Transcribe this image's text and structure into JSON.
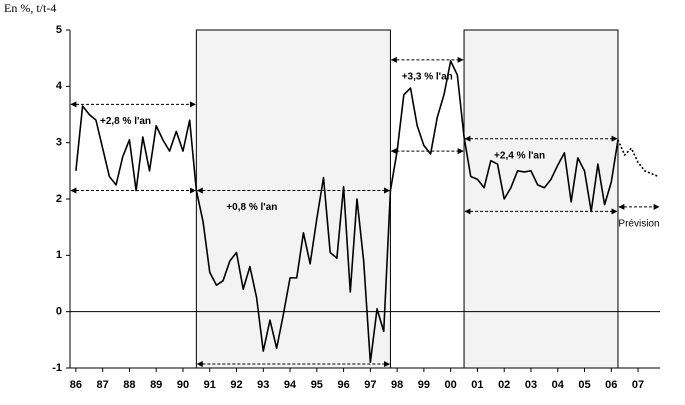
{
  "chart_data": {
    "type": "line",
    "y_axis_label": "En %, t/t-4",
    "xlim": [
      1985.78,
      2007.82
    ],
    "ylim": [
      -1,
      5
    ],
    "yticks": [
      5,
      4,
      3,
      2,
      1,
      0,
      -1
    ],
    "xticks": [
      {
        "value": 1986,
        "label": "86"
      },
      {
        "value": 1987,
        "label": "87"
      },
      {
        "value": 1988,
        "label": "88"
      },
      {
        "value": 1989,
        "label": "89"
      },
      {
        "value": 1990,
        "label": "90"
      },
      {
        "value": 1991,
        "label": "91"
      },
      {
        "value": 1992,
        "label": "92"
      },
      {
        "value": 1993,
        "label": "93"
      },
      {
        "value": 1994,
        "label": "94"
      },
      {
        "value": 1995,
        "label": "95"
      },
      {
        "value": 1996,
        "label": "96"
      },
      {
        "value": 1997,
        "label": "97"
      },
      {
        "value": 1998,
        "label": "98"
      },
      {
        "value": 1999,
        "label": "99"
      },
      {
        "value": 2000,
        "label": "00"
      },
      {
        "value": 2001,
        "label": "01"
      },
      {
        "value": 2002,
        "label": "02"
      },
      {
        "value": 2003,
        "label": "03"
      },
      {
        "value": 2004,
        "label": "04"
      },
      {
        "value": 2005,
        "label": "05"
      },
      {
        "value": 2006,
        "label": "06"
      },
      {
        "value": 2007,
        "label": "07"
      }
    ],
    "grid": false,
    "shaded_periods": [
      [
        1990.5,
        1997.75
      ],
      [
        2000.5,
        2006.25
      ]
    ],
    "series": [
      {
        "color": "#000000",
        "dash": false,
        "x": [
          1986,
          1986.25,
          1986.5,
          1986.75,
          1987,
          1987.25,
          1987.5,
          1987.75,
          1988,
          1988.25,
          1988.5,
          1988.75,
          1989,
          1989.25,
          1989.5,
          1989.75,
          1990,
          1990.25,
          1990.5,
          1990.75,
          1991,
          1991.25,
          1991.5,
          1991.75,
          1992,
          1992.25,
          1992.5,
          1992.75,
          1993,
          1993.25,
          1993.5,
          1993.75,
          1994,
          1994.25,
          1994.5,
          1994.75,
          1995,
          1995.25,
          1995.5,
          1995.75,
          1996,
          1996.25,
          1996.5,
          1996.75,
          1997,
          1997.25,
          1997.5,
          1997.75,
          1998,
          1998.25,
          1998.5,
          1998.75,
          1999,
          1999.25,
          1999.5,
          1999.75,
          2000,
          2000.25,
          2000.5,
          2000.75,
          2001,
          2001.25,
          2001.5,
          2001.75,
          2002,
          2002.25,
          2002.5,
          2002.75,
          2003,
          2003.25,
          2003.5,
          2003.75,
          2004,
          2004.25,
          2004.5,
          2004.75,
          2005,
          2005.25,
          2005.5,
          2005.75,
          2006,
          2006.25
        ],
        "values": [
          2.5,
          3.65,
          3.5,
          3.4,
          2.9,
          2.4,
          2.25,
          2.75,
          3.05,
          2.15,
          3.1,
          2.5,
          3.3,
          3.05,
          2.85,
          3.2,
          2.85,
          3.4,
          2.15,
          1.6,
          0.7,
          0.47,
          0.55,
          0.9,
          1.05,
          0.4,
          0.8,
          0.25,
          -0.7,
          -0.15,
          -0.65,
          -0.05,
          0.6,
          0.6,
          1.4,
          0.85,
          1.65,
          2.38,
          1.05,
          0.95,
          2.22,
          0.35,
          2.0,
          0.9,
          -0.9,
          0.05,
          -0.35,
          2.15,
          2.85,
          3.85,
          3.97,
          3.3,
          2.95,
          2.8,
          3.45,
          3.85,
          4.45,
          4.2,
          3.1,
          2.4,
          2.35,
          2.2,
          2.68,
          2.62,
          2.0,
          2.2,
          2.5,
          2.48,
          2.5,
          2.25,
          2.2,
          2.35,
          2.6,
          2.82,
          1.95,
          2.73,
          2.5,
          1.78,
          2.62,
          1.9,
          2.3,
          3.05
        ]
      },
      {
        "color": "#000000",
        "dash": true,
        "x": [
          2006.25,
          2006.5,
          2006.75,
          2007,
          2007.25,
          2007.5,
          2007.75
        ],
        "values": [
          3.05,
          2.78,
          2.9,
          2.65,
          2.5,
          2.45,
          2.4
        ]
      }
    ],
    "annotations": [
      {
        "text": "+2,8 % l'an",
        "x": [
          1985.78,
          1990.5
        ],
        "y": [
          3.68,
          2.15
        ]
      },
      {
        "text": "+0,8 % l'an",
        "x": [
          1990.5,
          1997.75
        ],
        "y": [
          2.15,
          -0.93
        ]
      },
      {
        "text": "+3,3 % l'an",
        "x": [
          1997.75,
          2000.5
        ],
        "y": [
          4.47,
          2.85
        ]
      },
      {
        "text": "+2,4 % l'an",
        "x": [
          2000.5,
          2006.25
        ],
        "y": [
          3.07,
          1.78
        ]
      },
      {
        "text": "Prévision",
        "x": [
          2006.25,
          2007.82
        ],
        "y": [
          1.86
        ]
      }
    ]
  }
}
